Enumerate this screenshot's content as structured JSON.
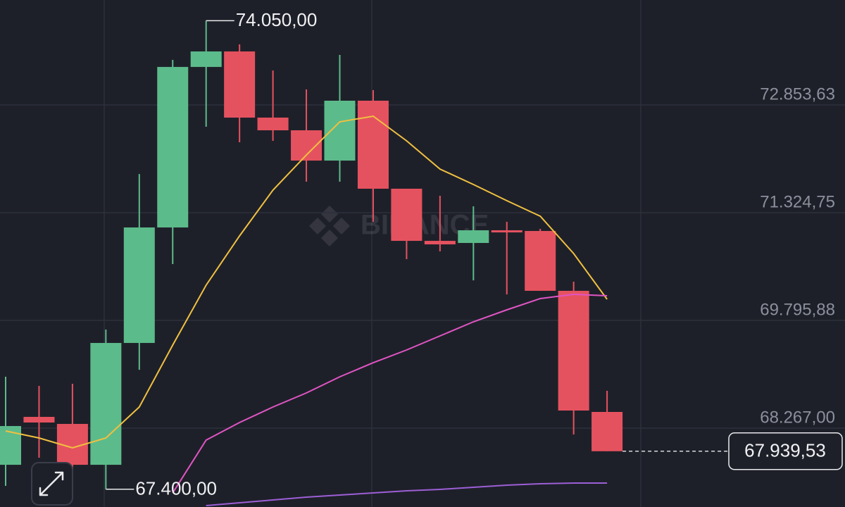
{
  "chart_data": {
    "type": "candlestick",
    "watermark": "BINANCE",
    "categories": [
      null,
      null,
      null,
      null,
      null,
      null,
      null,
      null,
      null,
      null,
      null,
      null,
      null,
      null,
      null,
      null,
      null,
      null,
      null
    ],
    "candles": {
      "open": [
        67747,
        68427,
        68327,
        67747,
        69476,
        71115,
        73393,
        73613,
        72674,
        72494,
        72064,
        72914,
        71665,
        70925,
        70895,
        71075,
        71065,
        70216,
        68497
      ],
      "high": [
        68997,
        68867,
        68897,
        69666,
        71874,
        73493,
        74050,
        73713,
        73343,
        73074,
        73563,
        73064,
        71665,
        71565,
        71415,
        71195,
        71095,
        70346,
        68797
      ],
      "low": [
        67448,
        67847,
        67667,
        67400,
        69096,
        70595,
        72544,
        72324,
        72344,
        71765,
        71765,
        71195,
        70665,
        70775,
        70365,
        70165,
        70216,
        68177,
        67939.53
      ],
      "close": [
        68297,
        68347,
        67747,
        69476,
        71115,
        73393,
        73613,
        72674,
        72494,
        72064,
        72914,
        71665,
        70925,
        70875,
        71075,
        71045,
        70216,
        68517,
        67939.53
      ],
      "up_color": "#5cbb8b",
      "down_color": "#e5525f"
    },
    "lines": [
      {
        "color": "#f0c040",
        "values": [
          68227,
          68127,
          67987,
          68127,
          68567,
          69446,
          70296,
          70995,
          71645,
          72144,
          72614,
          72694,
          72344,
          71944,
          71725,
          71495,
          71275,
          70745,
          70096
        ]
      },
      {
        "color": "#e055c4",
        "values": [
          null,
          null,
          null,
          null,
          null,
          67348,
          68097,
          68347,
          68567,
          68767,
          68996,
          69196,
          69376,
          69576,
          69776,
          69946,
          70106,
          70166,
          70146
        ]
      },
      {
        "color": "#9c5fd6",
        "values": [
          null,
          null,
          null,
          null,
          null,
          null,
          67168,
          67208,
          67248,
          67288,
          67318,
          67348,
          67378,
          67398,
          67428,
          67458,
          67478,
          67488,
          67488
        ]
      }
    ],
    "ylim": [
      67148,
      74343
    ],
    "yticks": [
      {
        "value": 68267.0,
        "label": "68.267,00"
      },
      {
        "value": 69795.88,
        "label": "69.795,88"
      },
      {
        "value": 71324.75,
        "label": "71.324,75"
      },
      {
        "value": 72853.63,
        "label": "72.853,63"
      }
    ],
    "grid": true,
    "high_marker": {
      "value": 74050,
      "label": "74.050,00"
    },
    "low_marker": {
      "value": 67400,
      "label": "67.400,00"
    },
    "last_price": {
      "value": 67939.53,
      "label": "67.939,53"
    }
  }
}
